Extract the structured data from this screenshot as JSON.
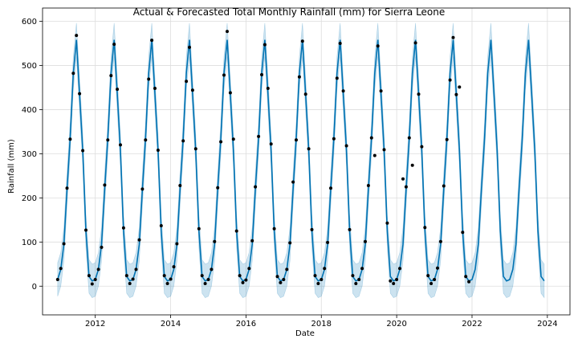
{
  "chart_data": {
    "type": "line",
    "title": "Actual & Forecasted Total Monthly Rainfall (mm) for Sierra Leone",
    "xlabel": "Date",
    "ylabel": "Rainfall (mm)",
    "xlim": [
      2010.6,
      2024.6
    ],
    "ylim": [
      -65,
      630
    ],
    "x_ticks": [
      2012,
      2014,
      2016,
      2018,
      2020,
      2022,
      2024
    ],
    "y_ticks": [
      0,
      100,
      200,
      300,
      400,
      500,
      600
    ],
    "grid": true,
    "colors": {
      "forecast": "#0072B2",
      "band": "#0072B2",
      "actual": "#000000",
      "grid": "#dddddd"
    },
    "forecast_monthly_profile": [
      15,
      38,
      95,
      220,
      335,
      482,
      558,
      435,
      308,
      125,
      22,
      12
    ],
    "forecast_years": [
      2011,
      2012,
      2013,
      2014,
      2015,
      2016,
      2017,
      2018,
      2019,
      2020,
      2021,
      2022,
      2023
    ],
    "forecast_uncertainty": 38,
    "series": [
      {
        "type": "scatter",
        "x": [
          "2011-01",
          "2011-02",
          "2011-03",
          "2011-04",
          "2011-05",
          "2011-06",
          "2011-07",
          "2011-08",
          "2011-09",
          "2011-10",
          "2011-11",
          "2011-12",
          "2012-01",
          "2012-02",
          "2012-03",
          "2012-04",
          "2012-05",
          "2012-06",
          "2012-07",
          "2012-08",
          "2012-09",
          "2012-10",
          "2012-11",
          "2012-12",
          "2013-01",
          "2013-02",
          "2013-03",
          "2013-04",
          "2013-05",
          "2013-06",
          "2013-07",
          "2013-08",
          "2013-09",
          "2013-10",
          "2013-11",
          "2013-12",
          "2014-01",
          "2014-02",
          "2014-03",
          "2014-04",
          "2014-05",
          "2014-06",
          "2014-07",
          "2014-08",
          "2014-09",
          "2014-10",
          "2014-11",
          "2014-12",
          "2015-01",
          "2015-02",
          "2015-03",
          "2015-04",
          "2015-05",
          "2015-06",
          "2015-07",
          "2015-08",
          "2015-09",
          "2015-10",
          "2015-11",
          "2015-12",
          "2016-01",
          "2016-02",
          "2016-03",
          "2016-04",
          "2016-05",
          "2016-06",
          "2016-07",
          "2016-08",
          "2016-09",
          "2016-10",
          "2016-11",
          "2016-12",
          "2017-01",
          "2017-02",
          "2017-03",
          "2017-04",
          "2017-05",
          "2017-06",
          "2017-07",
          "2017-08",
          "2017-09",
          "2017-10",
          "2017-11",
          "2017-12",
          "2018-01",
          "2018-02",
          "2018-03",
          "2018-04",
          "2018-05",
          "2018-06",
          "2018-07",
          "2018-08",
          "2018-09",
          "2018-10",
          "2018-11",
          "2018-12",
          "2019-01",
          "2019-02",
          "2019-03",
          "2019-04",
          "2019-05",
          "2019-06",
          "2019-07",
          "2019-08",
          "2019-09",
          "2019-10",
          "2019-11",
          "2019-12",
          "2020-01",
          "2020-02",
          "2020-03",
          "2020-04",
          "2020-05",
          "2020-06",
          "2020-07",
          "2020-08",
          "2020-09",
          "2020-10",
          "2020-11",
          "2020-12",
          "2021-01",
          "2021-02",
          "2021-03",
          "2021-04",
          "2021-05",
          "2021-06",
          "2021-07",
          "2021-08",
          "2021-09",
          "2021-10",
          "2021-11",
          "2021-12"
        ],
        "y": [
          15,
          40,
          96,
          222,
          333,
          482,
          568,
          436,
          307,
          127,
          24,
          5,
          15,
          38,
          88,
          229,
          331,
          477,
          548,
          446,
          320,
          132,
          24,
          6,
          16,
          38,
          105,
          220,
          331,
          469,
          557,
          448,
          308,
          137,
          24,
          6,
          16,
          44,
          96,
          228,
          329,
          464,
          541,
          444,
          311,
          130,
          24,
          6,
          15,
          38,
          101,
          223,
          327,
          478,
          577,
          438,
          333,
          125,
          24,
          8,
          14,
          40,
          103,
          225,
          339,
          479,
          547,
          448,
          322,
          130,
          22,
          8,
          15,
          38,
          98,
          236,
          331,
          474,
          555,
          435,
          311,
          128,
          24,
          6,
          15,
          40,
          99,
          222,
          334,
          471,
          550,
          442,
          318,
          128,
          24,
          6,
          15,
          40,
          101,
          228,
          336,
          296,
          544,
          442,
          309,
          143,
          12,
          6,
          15,
          40,
          243,
          225,
          336,
          274,
          551,
          435,
          316,
          133,
          24,
          6,
          15,
          41,
          101,
          227,
          332,
          467,
          563,
          434,
          451,
          122,
          22,
          10
        ]
      }
    ]
  }
}
